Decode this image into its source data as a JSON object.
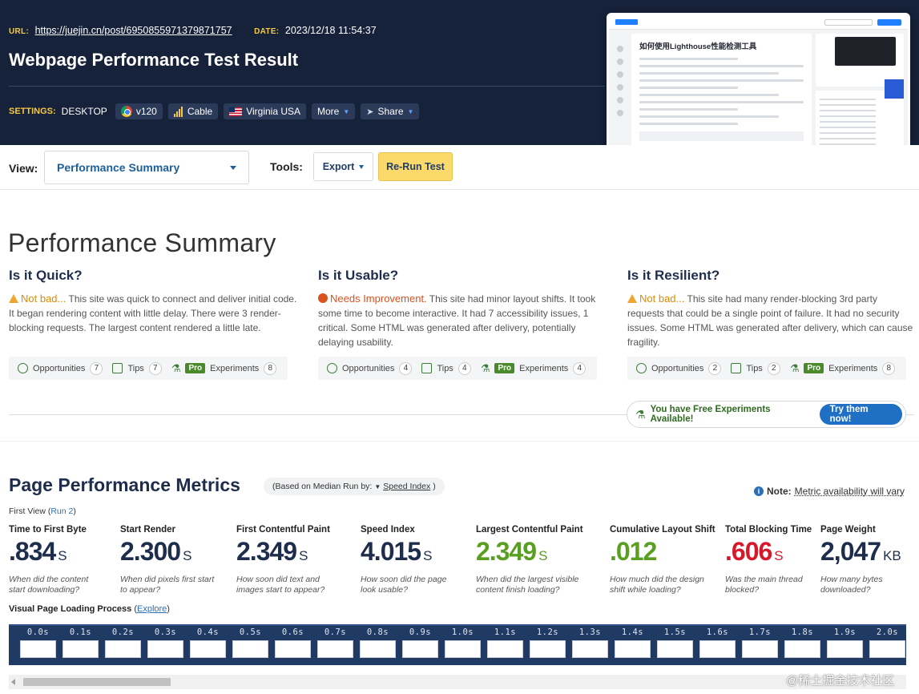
{
  "header": {
    "url_label": "URL:",
    "url": "https://juejin.cn/post/6950855971379871757",
    "date_label": "DATE:",
    "date": "2023/12/18 11:54:37",
    "title": "Webpage Performance Test Result",
    "settings_label": "SETTINGS:",
    "device": "DESKTOP",
    "browser": "v120",
    "connection": "Cable",
    "location": "Virginia USA",
    "more": "More",
    "share": "Share"
  },
  "thumbnail": {
    "article_title": "如何使用Lighthouse性能检测工具"
  },
  "viewbar": {
    "view_label": "View:",
    "view_value": "Performance Summary",
    "tools_label": "Tools:",
    "export": "Export",
    "rerun": "Re-Run Test"
  },
  "summary": {
    "title": "Performance Summary",
    "columns": [
      {
        "heading": "Is it Quick?",
        "level": "Not bad...",
        "text": " This site was quick to connect and deliver initial code. It began rendering content with little delay. There were 3 render-blocking requests. The largest content rendered a little late.",
        "opportunities": "Opportunities",
        "opp_count": "7",
        "tips": "Tips",
        "tips_count": "7",
        "pro": "Pro",
        "experiments": "Experiments",
        "exp_count": "8"
      },
      {
        "heading": "Is it Usable?",
        "level": "Needs Improvement.",
        "text": " This site had minor layout shifts. It took some time to become interactive. It had 7 accessibility issues, 1 critical. Some HTML was generated after delivery, potentially delaying usability.",
        "opportunities": "Opportunities",
        "opp_count": "4",
        "tips": "Tips",
        "tips_count": "4",
        "pro": "Pro",
        "experiments": "Experiments",
        "exp_count": "4"
      },
      {
        "heading": "Is it Resilient?",
        "level": "Not bad...",
        "text": " This site had many render-blocking 3rd party requests that could be a single point of failure. It had no security issues. Some HTML was generated after delivery, which can cause fragility.",
        "opportunities": "Opportunities",
        "opp_count": "2",
        "tips": "Tips",
        "tips_count": "2",
        "pro": "Pro",
        "experiments": "Experiments",
        "exp_count": "8"
      }
    ],
    "free_experiments": "You have Free Experiments Available!",
    "try_button": "Try them now!"
  },
  "metrics": {
    "title": "Page Performance Metrics",
    "median_prefix": "(Based on Median Run by:",
    "median_value": "Speed Index",
    "median_suffix": ")",
    "note_label": "Note:",
    "note_text": "Metric availability will vary",
    "first_view": "First View",
    "run_open": "(",
    "run": "Run 2",
    "run_close": ")",
    "items": [
      {
        "label": "Time to First Byte",
        "value": ".834",
        "unit": "S",
        "desc": "When did the content start downloading?"
      },
      {
        "label": "Start Render",
        "value": "2.300",
        "unit": "S",
        "desc": "When did pixels first start to appear?"
      },
      {
        "label": "First Contentful Paint",
        "value": "2.349",
        "unit": "S",
        "desc": "How soon did text and images start to appear?"
      },
      {
        "label": "Speed Index",
        "value": "4.015",
        "unit": "S",
        "desc": "How soon did the page look usable?"
      },
      {
        "label": "Largest Contentful Paint",
        "value": "2.349",
        "unit": "S",
        "desc": "When did the largest visible content finish loading?"
      },
      {
        "label": "Cumulative Layout Shift",
        "value": ".012",
        "unit": "",
        "desc": "How much did the design shift while loading?"
      },
      {
        "label": "Total Blocking Time",
        "value": ".606",
        "unit": "S",
        "desc": "Was the main thread blocked?"
      },
      {
        "label": "Page Weight",
        "value": "2,047",
        "unit": "KB",
        "desc": "How many bytes downloaded?"
      }
    ],
    "visual_label": "Visual Page Loading Process",
    "explore": "Explore",
    "frames": [
      "0.0s",
      "0.1s",
      "0.2s",
      "0.3s",
      "0.4s",
      "0.5s",
      "0.6s",
      "0.7s",
      "0.8s",
      "0.9s",
      "1.0s",
      "1.1s",
      "1.2s",
      "1.3s",
      "1.4s",
      "1.5s",
      "1.6s",
      "1.7s",
      "1.8s",
      "1.9s",
      "2.0s"
    ]
  },
  "watermark": "@稀土掘金技术社区"
}
